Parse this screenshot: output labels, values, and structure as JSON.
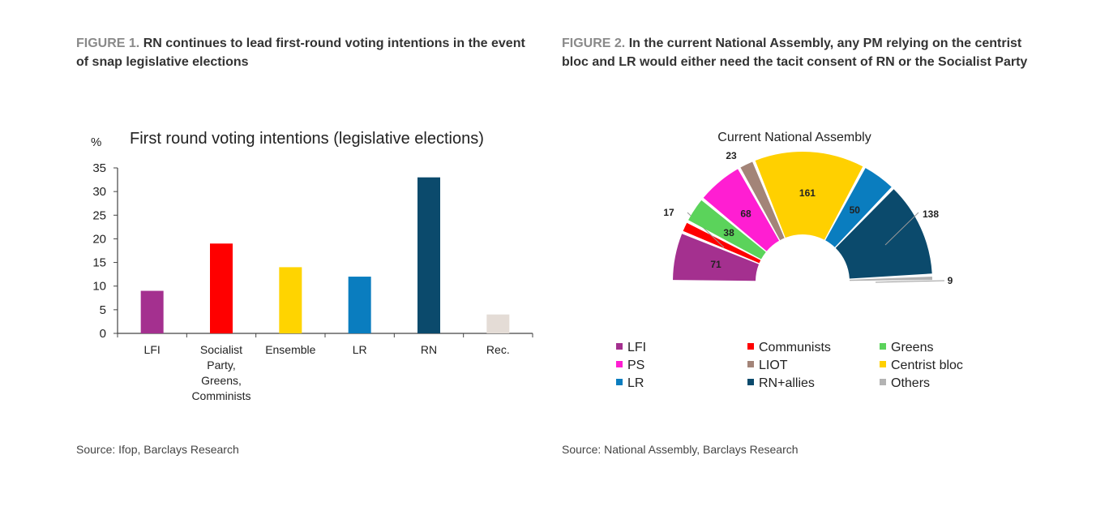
{
  "figure1": {
    "label": "FIGURE 1.",
    "heading": "RN continues to lead first-round voting intentions in the event of snap legislative elections",
    "source": "Source: Ifop, Barclays Research"
  },
  "figure2": {
    "label": "FIGURE 2.",
    "heading": "In the current National Assembly, any PM relying on the centrist bloc and LR would either need the tacit consent of RN or the Socialist Party",
    "source": "Source: National Assembly, Barclays Research"
  },
  "chart_data": [
    {
      "type": "bar",
      "title": "First round voting intentions (legislative elections)",
      "ylabel": "%",
      "xlabel": "",
      "ylim": [
        0,
        35
      ],
      "yticks": [
        0,
        5,
        10,
        15,
        20,
        25,
        30,
        35
      ],
      "grid": false,
      "categories": [
        [
          "LFI"
        ],
        [
          "Socialist",
          "Party,",
          "Greens,",
          "Comminists"
        ],
        [
          "Ensemble"
        ],
        [
          "LR"
        ],
        [
          "RN"
        ],
        [
          "Rec."
        ]
      ],
      "values": [
        9,
        19,
        14,
        12,
        33,
        4
      ],
      "colors": [
        "#a4308f",
        "#ff0000",
        "#ffd400",
        "#0a7dbf",
        "#0b4a6c",
        "#e4dcd6"
      ]
    },
    {
      "type": "pie",
      "variant": "half-donut",
      "title": "Current National Assembly",
      "slices": [
        {
          "name": "LFI",
          "value": 71,
          "color": "#a4308f"
        },
        {
          "name": "Communists",
          "value": 17,
          "color": "#ff0000"
        },
        {
          "name": "Greens",
          "value": 38,
          "color": "#5bd35b"
        },
        {
          "name": "PS",
          "value": 68,
          "color": "#ff1ed2"
        },
        {
          "name": "LIOT",
          "value": 23,
          "color": "#a38478"
        },
        {
          "name": "Centrist bloc",
          "value": 161,
          "color": "#ffd000"
        },
        {
          "name": "LR",
          "value": 50,
          "color": "#0a7dbf"
        },
        {
          "name": "RN+allies",
          "value": 138,
          "color": "#0b4a6c"
        },
        {
          "name": "Others",
          "value": 9,
          "color": "#b3b3b3"
        }
      ],
      "legend_order": [
        "LFI",
        "Communists",
        "Greens",
        "PS",
        "LIOT",
        "Centrist bloc",
        "LR",
        "RN+allies",
        "Others"
      ],
      "legend_placement": "bottom"
    }
  ]
}
